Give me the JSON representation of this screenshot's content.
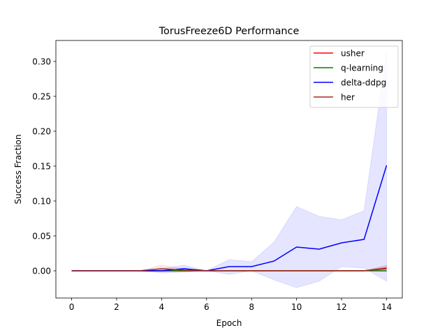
{
  "chart_data": {
    "type": "line",
    "title": "TorusFreeze6D Performance",
    "xlabel": "Epoch",
    "ylabel": "Success Fraction",
    "xlim": [
      -0.7,
      14.7
    ],
    "ylim": [
      -0.039,
      0.33
    ],
    "xticks": [
      0,
      2,
      4,
      6,
      8,
      10,
      12,
      14
    ],
    "xtick_labels": [
      "0",
      "2",
      "4",
      "6",
      "8",
      "10",
      "12",
      "14"
    ],
    "yticks": [
      0.0,
      0.05,
      0.1,
      0.15,
      0.2,
      0.25,
      0.3
    ],
    "ytick_labels": [
      "0.00",
      "0.05",
      "0.10",
      "0.15",
      "0.20",
      "0.25",
      "0.30"
    ],
    "grid": false,
    "legend_position": "top-right",
    "x": [
      0,
      1,
      2,
      3,
      4,
      5,
      6,
      7,
      8,
      9,
      10,
      11,
      12,
      13,
      14
    ],
    "series": [
      {
        "name": "usher",
        "color": "#ff0000",
        "values": [
          0,
          0,
          0,
          0,
          0,
          0,
          0,
          0,
          0,
          0,
          0,
          0,
          0,
          0,
          0.003
        ],
        "band_lower": [
          0,
          0,
          0,
          0,
          -0.001,
          -0.001,
          0,
          0,
          0,
          0,
          0,
          0,
          0,
          0,
          -0.001
        ],
        "band_upper": [
          0,
          0,
          0,
          0,
          0.001,
          0.001,
          0,
          0,
          0,
          0,
          0,
          0,
          0,
          0,
          0.007
        ]
      },
      {
        "name": "q-learning",
        "color": "#008000",
        "values": [
          0,
          0,
          0,
          0,
          0,
          0,
          0,
          0,
          0,
          0,
          0,
          0,
          0,
          0,
          0
        ],
        "band_lower": [
          0,
          0,
          0,
          0,
          0,
          0,
          0,
          0,
          0,
          0,
          0,
          0,
          0,
          0,
          0
        ],
        "band_upper": [
          0,
          0,
          0,
          0,
          0,
          0,
          0,
          0,
          0,
          0,
          0,
          0,
          0,
          0,
          0
        ]
      },
      {
        "name": "delta-ddpg",
        "color": "#0000ff",
        "values": [
          0,
          0,
          0,
          0,
          0,
          0.003,
          0,
          0.006,
          0.006,
          0.014,
          0.034,
          0.031,
          0.04,
          0.045,
          0.151
        ],
        "band_lower": [
          0,
          0,
          0,
          0,
          -0.003,
          -0.002,
          0,
          -0.005,
          0,
          -0.013,
          -0.024,
          -0.015,
          0.006,
          0.004,
          -0.015
        ],
        "band_upper": [
          0,
          0,
          0,
          0,
          0.003,
          0.008,
          0,
          0.016,
          0.013,
          0.041,
          0.092,
          0.078,
          0.073,
          0.086,
          0.314
        ]
      },
      {
        "name": "her",
        "color": "#a52a2a",
        "values": [
          0,
          0,
          0,
          0,
          0.003,
          0.001,
          0,
          0,
          0,
          0,
          0,
          0,
          0,
          0,
          0.004
        ],
        "band_lower": [
          0,
          0,
          0,
          0,
          -0.001,
          -0.001,
          0,
          0,
          0,
          0,
          0,
          0,
          0,
          0,
          0
        ],
        "band_upper": [
          0,
          0,
          0,
          0,
          0.008,
          0.003,
          0,
          0,
          0,
          0,
          0,
          0,
          0,
          0,
          0.008
        ]
      }
    ]
  }
}
